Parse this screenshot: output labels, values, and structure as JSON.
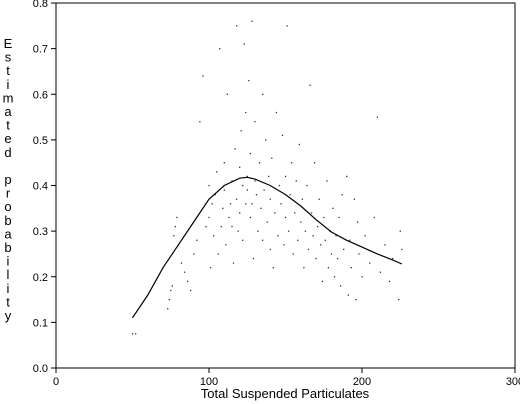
{
  "chart_data": {
    "type": "scatter",
    "title": "",
    "xlabel": "Total Suspended Particulates",
    "ylabel": "Estimated probability",
    "xlim": [
      0,
      300
    ],
    "ylim": [
      0.0,
      0.8
    ],
    "x_ticks": [
      0,
      100,
      200,
      300
    ],
    "x_tick_labels": [
      "0",
      "100",
      "200",
      "300"
    ],
    "y_ticks": [
      0.0,
      0.1,
      0.2,
      0.3,
      0.4,
      0.5,
      0.6,
      0.7,
      0.8
    ],
    "y_tick_labels": [
      "0.0",
      "0.1",
      "0.2",
      "0.3",
      "0.4",
      "0.5",
      "0.6",
      "0.7",
      "0.8"
    ],
    "grid": false,
    "legend": "none",
    "colors": {
      "points": "#333333",
      "line": "#000000",
      "axes": "#000000"
    },
    "series": [
      {
        "type": "line",
        "x": [
          50,
          60,
          70,
          80,
          90,
          100,
          110,
          120,
          125,
          130,
          140,
          150,
          160,
          170,
          180,
          190,
          200,
          210,
          220,
          226
        ],
        "y": [
          0.11,
          0.16,
          0.22,
          0.27,
          0.32,
          0.37,
          0.4,
          0.416,
          0.418,
          0.414,
          0.4,
          0.38,
          0.355,
          0.325,
          0.298,
          0.28,
          0.265,
          0.25,
          0.237,
          0.228
        ]
      },
      {
        "type": "scatter",
        "points": [
          [
            50,
            0.075
          ],
          [
            52,
            0.075
          ],
          [
            73,
            0.13
          ],
          [
            74,
            0.15
          ],
          [
            75,
            0.17
          ],
          [
            76,
            0.18
          ],
          [
            77,
            0.29
          ],
          [
            78,
            0.31
          ],
          [
            79,
            0.33
          ],
          [
            80,
            0.27
          ],
          [
            82,
            0.23
          ],
          [
            84,
            0.21
          ],
          [
            86,
            0.19
          ],
          [
            88,
            0.17
          ],
          [
            90,
            0.25
          ],
          [
            92,
            0.28
          ],
          [
            94,
            0.54
          ],
          [
            96,
            0.64
          ],
          [
            98,
            0.31
          ],
          [
            100,
            0.33
          ],
          [
            100,
            0.4
          ],
          [
            101,
            0.22
          ],
          [
            102,
            0.36
          ],
          [
            103,
            0.29
          ],
          [
            104,
            0.38
          ],
          [
            105,
            0.43
          ],
          [
            106,
            0.25
          ],
          [
            107,
            0.7
          ],
          [
            108,
            0.31
          ],
          [
            109,
            0.35
          ],
          [
            110,
            0.39
          ],
          [
            110,
            0.45
          ],
          [
            111,
            0.27
          ],
          [
            112,
            0.6
          ],
          [
            113,
            0.33
          ],
          [
            114,
            0.36
          ],
          [
            115,
            0.41
          ],
          [
            115,
            0.31
          ],
          [
            116,
            0.23
          ],
          [
            117,
            0.48
          ],
          [
            118,
            0.75
          ],
          [
            118,
            0.37
          ],
          [
            119,
            0.3
          ],
          [
            120,
            0.44
          ],
          [
            120,
            0.34
          ],
          [
            121,
            0.52
          ],
          [
            122,
            0.4
          ],
          [
            122,
            0.28
          ],
          [
            123,
            0.71
          ],
          [
            124,
            0.56
          ],
          [
            124,
            0.36
          ],
          [
            125,
            0.39
          ],
          [
            125,
            0.42
          ],
          [
            126,
            0.63
          ],
          [
            127,
            0.33
          ],
          [
            127,
            0.47
          ],
          [
            128,
            0.76
          ],
          [
            128,
            0.36
          ],
          [
            129,
            0.24
          ],
          [
            130,
            0.41
          ],
          [
            130,
            0.54
          ],
          [
            131,
            0.38
          ],
          [
            132,
            0.3
          ],
          [
            133,
            0.45
          ],
          [
            134,
            0.35
          ],
          [
            135,
            0.6
          ],
          [
            135,
            0.28
          ],
          [
            136,
            0.39
          ],
          [
            137,
            0.5
          ],
          [
            138,
            0.32
          ],
          [
            139,
            0.42
          ],
          [
            140,
            0.26
          ],
          [
            140,
            0.37
          ],
          [
            141,
            0.46
          ],
          [
            142,
            0.22
          ],
          [
            143,
            0.34
          ],
          [
            144,
            0.56
          ],
          [
            145,
            0.29
          ],
          [
            146,
            0.4
          ],
          [
            147,
            0.36
          ],
          [
            148,
            0.51
          ],
          [
            149,
            0.27
          ],
          [
            150,
            0.42
          ],
          [
            150,
            0.33
          ],
          [
            151,
            0.75
          ],
          [
            152,
            0.3
          ],
          [
            153,
            0.38
          ],
          [
            154,
            0.45
          ],
          [
            155,
            0.25
          ],
          [
            156,
            0.34
          ],
          [
            157,
            0.41
          ],
          [
            158,
            0.28
          ],
          [
            159,
            0.49
          ],
          [
            160,
            0.32
          ],
          [
            161,
            0.37
          ],
          [
            162,
            0.22
          ],
          [
            163,
            0.3
          ],
          [
            164,
            0.4
          ],
          [
            165,
            0.26
          ],
          [
            166,
            0.62
          ],
          [
            167,
            0.34
          ],
          [
            168,
            0.29
          ],
          [
            169,
            0.45
          ],
          [
            170,
            0.24
          ],
          [
            171,
            0.31
          ],
          [
            172,
            0.37
          ],
          [
            173,
            0.27
          ],
          [
            174,
            0.19
          ],
          [
            175,
            0.33
          ],
          [
            176,
            0.28
          ],
          [
            177,
            0.41
          ],
          [
            178,
            0.22
          ],
          [
            179,
            0.3
          ],
          [
            180,
            0.25
          ],
          [
            181,
            0.35
          ],
          [
            182,
            0.2
          ],
          [
            183,
            0.29
          ],
          [
            184,
            0.24
          ],
          [
            185,
            0.33
          ],
          [
            186,
            0.18
          ],
          [
            187,
            0.38
          ],
          [
            188,
            0.26
          ],
          [
            190,
            0.42
          ],
          [
            191,
            0.16
          ],
          [
            192,
            0.28
          ],
          [
            193,
            0.22
          ],
          [
            195,
            0.37
          ],
          [
            196,
            0.15
          ],
          [
            197,
            0.32
          ],
          [
            198,
            0.25
          ],
          [
            200,
            0.2
          ],
          [
            202,
            0.29
          ],
          [
            205,
            0.23
          ],
          [
            208,
            0.33
          ],
          [
            210,
            0.55
          ],
          [
            212,
            0.21
          ],
          [
            215,
            0.27
          ],
          [
            218,
            0.19
          ],
          [
            220,
            0.24
          ],
          [
            224,
            0.15
          ],
          [
            225,
            0.3
          ],
          [
            226,
            0.26
          ]
        ]
      }
    ]
  }
}
